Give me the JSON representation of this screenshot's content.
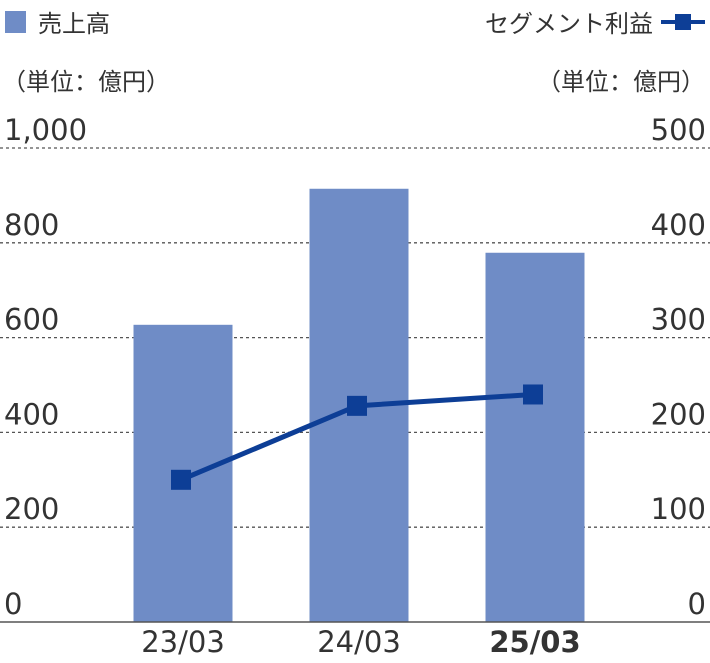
{
  "chart_data": {
    "type": "bar+line",
    "categories": [
      "23/03",
      "24/03",
      "25/03"
    ],
    "highlight_category": "25/03",
    "series": [
      {
        "name": "売上高",
        "type": "bar",
        "axis": "left",
        "color": "#6f8cc6",
        "values": [
          627,
          914,
          779
        ]
      },
      {
        "name": "セグメント利益",
        "type": "line",
        "axis": "right",
        "color": "#0d3e96",
        "marker": "square",
        "values": [
          150,
          228,
          240
        ]
      }
    ],
    "left_axis": {
      "unit": "（単位：億円）",
      "ylim": [
        0,
        1000
      ],
      "ticks": [
        "0",
        "200",
        "400",
        "600",
        "800",
        "1,000"
      ]
    },
    "right_axis": {
      "unit": "（単位：億円）",
      "ylim": [
        0,
        500
      ],
      "ticks": [
        "0",
        "100",
        "200",
        "300",
        "400",
        "500"
      ]
    },
    "grid": true,
    "legend": "top"
  }
}
